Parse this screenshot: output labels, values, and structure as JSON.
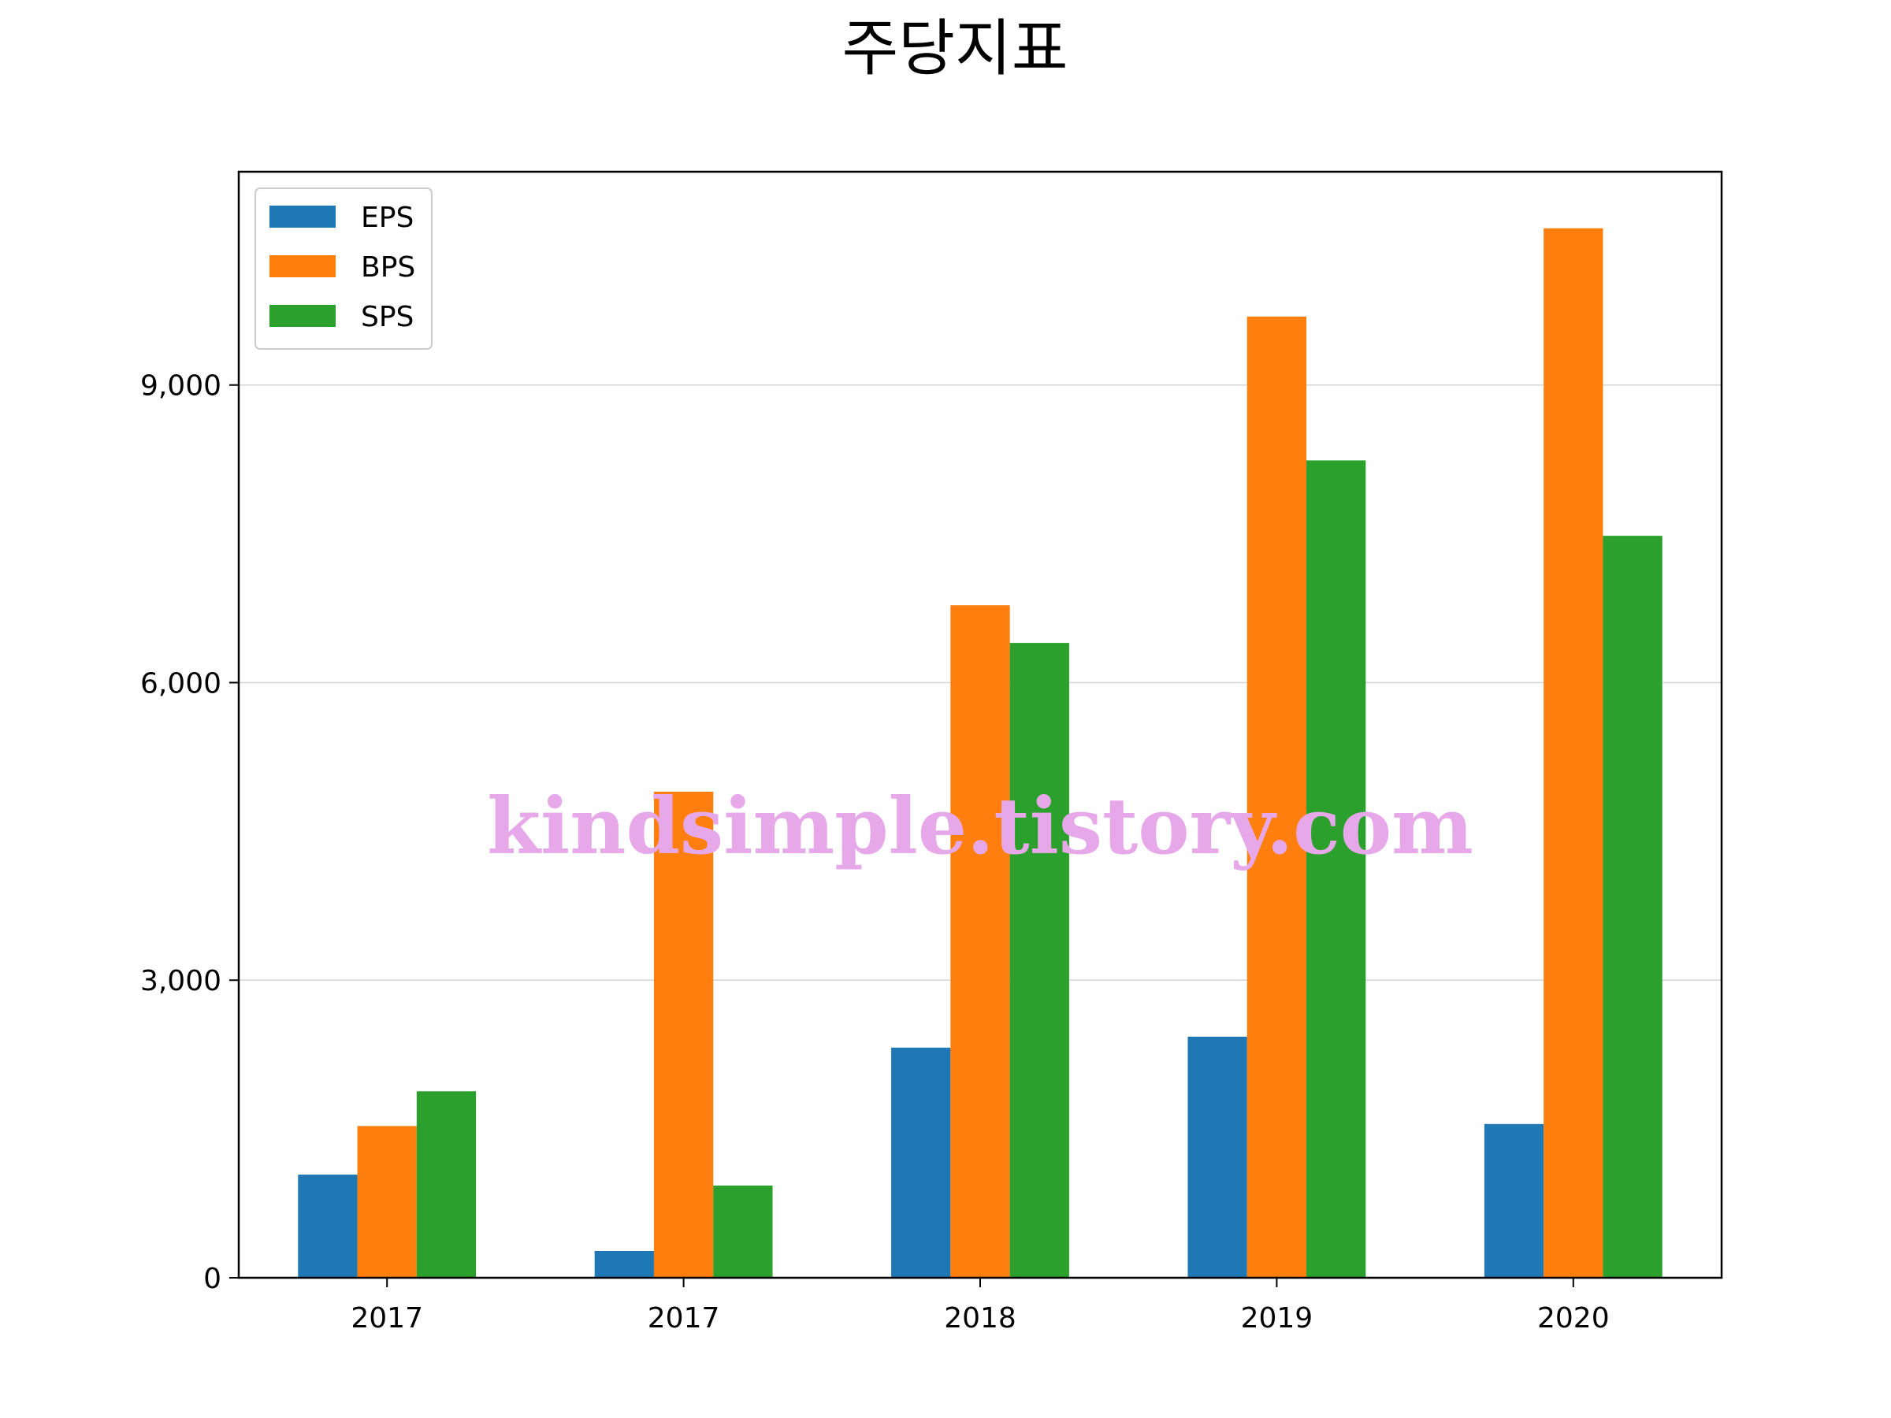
{
  "chart_data": {
    "type": "bar",
    "title": "주당지표",
    "xlabel": "",
    "ylabel": "",
    "categories": [
      "2017",
      "2017",
      "2018",
      "2019",
      "2020"
    ],
    "series": [
      {
        "name": "EPS",
        "color": "#1f77b4",
        "values": [
          1040,
          270,
          2320,
          2430,
          1550
        ]
      },
      {
        "name": "BPS",
        "color": "#ff7f0e",
        "values": [
          1530,
          4900,
          6780,
          9690,
          10580
        ]
      },
      {
        "name": "SPS",
        "color": "#2ca02c",
        "values": [
          1880,
          930,
          6400,
          8240,
          7480
        ]
      }
    ],
    "ylim": [
      0,
      11150
    ],
    "yticks": [
      0,
      3000,
      6000,
      9000
    ],
    "ytick_labels": [
      "0",
      "3,000",
      "6,000",
      "9,000"
    ],
    "grid": "y",
    "legend": "top-left",
    "watermark": "kindsimple.tistory.com"
  }
}
